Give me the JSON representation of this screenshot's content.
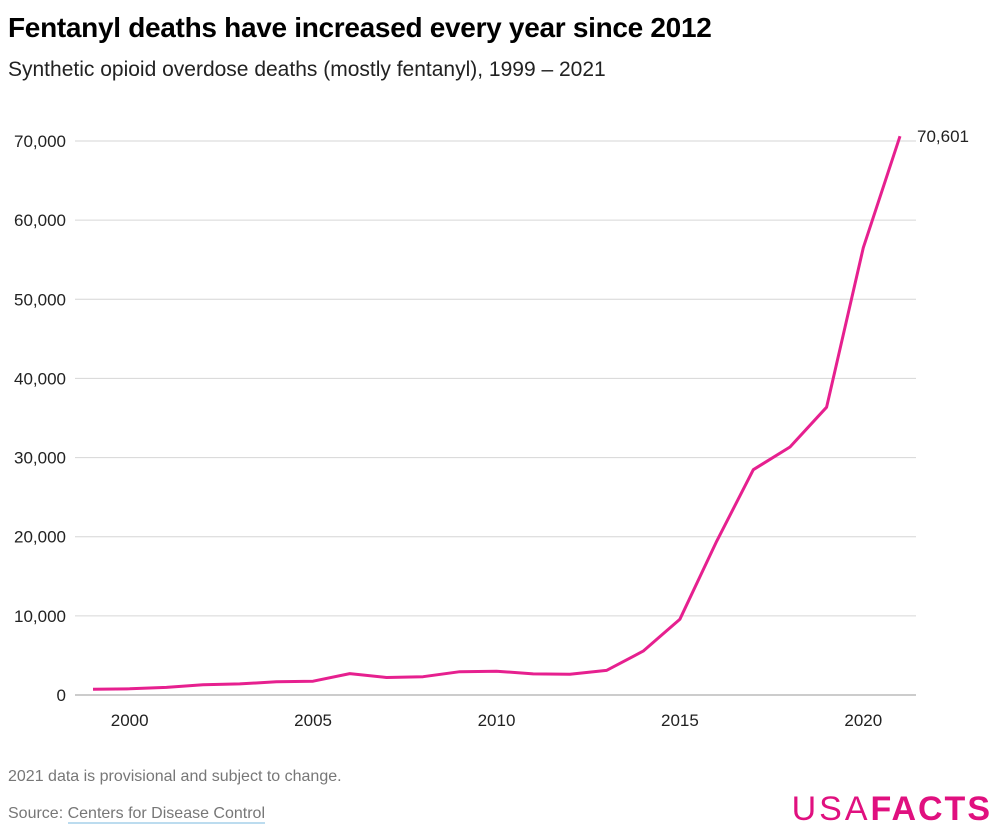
{
  "chart_data": {
    "type": "line",
    "title": "Fentanyl deaths have increased every year since 2012",
    "subtitle": "Synthetic opioid overdose deaths (mostly fentanyl), 1999 – 2021",
    "xlabel": "",
    "ylabel": "",
    "x": [
      1999,
      2000,
      2001,
      2002,
      2003,
      2004,
      2005,
      2006,
      2007,
      2008,
      2009,
      2010,
      2011,
      2012,
      2013,
      2014,
      2015,
      2016,
      2017,
      2018,
      2019,
      2020,
      2021
    ],
    "series": [
      {
        "values": [
          730,
          782,
          957,
          1295,
          1400,
          1664,
          1742,
          2707,
          2213,
          2306,
          2946,
          3007,
          2666,
          2628,
          3105,
          5544,
          9580,
          19413,
          28466,
          31335,
          36359,
          56516,
          70601
        ]
      }
    ],
    "end_label": "70,601",
    "xlim": [
      1999,
      2021
    ],
    "ylim": [
      0,
      70000
    ],
    "x_ticks": [
      2000,
      2005,
      2010,
      2015,
      2020
    ],
    "y_ticks": [
      0,
      10000,
      20000,
      30000,
      40000,
      50000,
      60000,
      70000
    ],
    "y_tick_labels": [
      "0",
      "10,000",
      "20,000",
      "30,000",
      "40,000",
      "50,000",
      "60,000",
      "70,000"
    ],
    "grid": "horizontal",
    "line_color": "#e6208f"
  },
  "footer": {
    "note": "2021 data is provisional and subject to change.",
    "source_prefix": "Source: ",
    "source_link": "Centers for Disease Control"
  },
  "logo": {
    "usa": "USA",
    "facts": "FACTS",
    "color": "#e0107f"
  }
}
